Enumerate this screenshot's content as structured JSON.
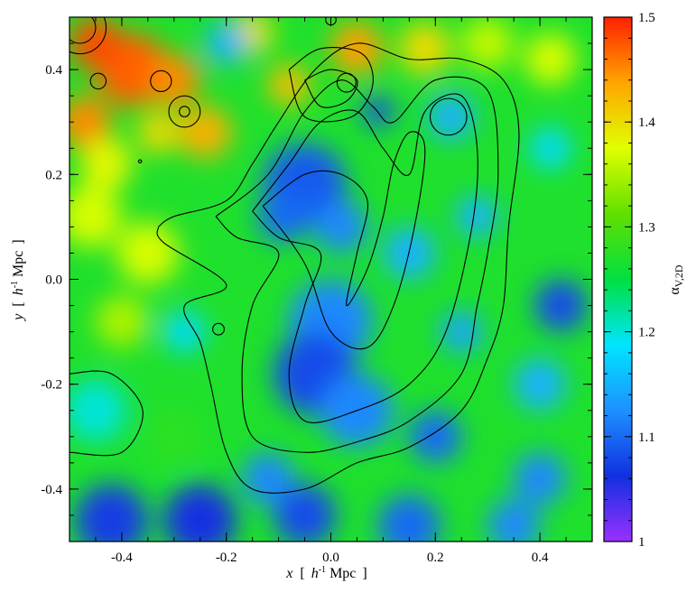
{
  "chart_data": {
    "type": "heatmap",
    "title": "",
    "colorbar_label": "α",
    "colorbar_subscript": "V,2D",
    "xlabel": {
      "var": "x",
      "open": "[",
      "unit_italic": "h",
      "unit_exp": "-1",
      "unit_rest": "Mpc",
      "close": "]"
    },
    "ylabel": {
      "var": "y",
      "open": "[",
      "unit_italic": "h",
      "unit_exp": "-1",
      "unit_rest": "Mpc",
      "close": "]"
    },
    "xlim": [
      -0.5,
      0.5
    ],
    "ylim": [
      -0.5,
      0.5
    ],
    "xticks": [
      -0.4,
      -0.2,
      0.0,
      0.2,
      0.4
    ],
    "xtick_labels": [
      "-0.4",
      "-0.2",
      "0.0",
      "0.2",
      "0.4"
    ],
    "yticks": [
      -0.4,
      -0.2,
      0.0,
      0.2,
      0.4
    ],
    "ytick_labels": [
      "-0.4",
      "-0.2",
      "0.0",
      "0.2",
      "0.4"
    ],
    "colorbar_range": [
      1.0,
      1.5
    ],
    "colorbar_ticks": [
      1.0,
      1.1,
      1.2,
      1.3,
      1.4,
      1.5
    ],
    "colorbar_tick_labels": [
      "1",
      "1.1",
      "1.2",
      "1.3",
      "1.4",
      "1.5"
    ],
    "colormap": [
      "#9b30ff",
      "#1030e0",
      "#1e90ff",
      "#00e5ff",
      "#00e040",
      "#60e000",
      "#e0ff00",
      "#ffa500",
      "#ff2000"
    ],
    "background_level": 1.27,
    "blobs": [
      {
        "x": -0.38,
        "y": 0.4,
        "r": 0.07,
        "level": 1.47
      },
      {
        "x": -0.3,
        "y": 0.38,
        "r": 0.05,
        "level": 1.45
      },
      {
        "x": -0.24,
        "y": 0.28,
        "r": 0.05,
        "level": 1.43
      },
      {
        "x": -0.33,
        "y": 0.28,
        "r": 0.04,
        "level": 1.4
      },
      {
        "x": -0.47,
        "y": 0.3,
        "r": 0.05,
        "level": 1.45
      },
      {
        "x": -0.45,
        "y": 0.45,
        "r": 0.05,
        "level": 1.48
      },
      {
        "x": -0.43,
        "y": 0.22,
        "r": 0.05,
        "level": 1.38
      },
      {
        "x": -0.15,
        "y": 0.47,
        "r": 0.04,
        "level": 1.4
      },
      {
        "x": -0.08,
        "y": 0.37,
        "r": 0.04,
        "level": 1.42
      },
      {
        "x": 0.05,
        "y": 0.44,
        "r": 0.05,
        "level": 1.44
      },
      {
        "x": 0.18,
        "y": 0.44,
        "r": 0.05,
        "level": 1.4
      },
      {
        "x": 0.3,
        "y": 0.45,
        "r": 0.05,
        "level": 1.36
      },
      {
        "x": 0.42,
        "y": 0.42,
        "r": 0.05,
        "level": 1.37
      },
      {
        "x": -0.35,
        "y": 0.05,
        "r": 0.06,
        "level": 1.37
      },
      {
        "x": -0.4,
        "y": -0.08,
        "r": 0.05,
        "level": 1.35
      },
      {
        "x": -0.46,
        "y": 0.12,
        "r": 0.06,
        "level": 1.37
      },
      {
        "x": -0.05,
        "y": 0.18,
        "r": 0.08,
        "level": 1.09
      },
      {
        "x": -0.09,
        "y": 0.12,
        "r": 0.05,
        "level": 1.1
      },
      {
        "x": 0.02,
        "y": 0.1,
        "r": 0.05,
        "level": 1.12
      },
      {
        "x": 0.09,
        "y": 0.32,
        "r": 0.03,
        "level": 1.08
      },
      {
        "x": 0.23,
        "y": 0.31,
        "r": 0.045,
        "level": 1.15
      },
      {
        "x": 0.0,
        "y": -0.08,
        "r": 0.08,
        "level": 1.12
      },
      {
        "x": -0.03,
        "y": -0.18,
        "r": 0.08,
        "level": 1.08
      },
      {
        "x": 0.05,
        "y": -0.25,
        "r": 0.07,
        "level": 1.12
      },
      {
        "x": 0.2,
        "y": -0.3,
        "r": 0.05,
        "level": 1.1
      },
      {
        "x": 0.25,
        "y": -0.1,
        "r": 0.04,
        "level": 1.14
      },
      {
        "x": 0.15,
        "y": 0.05,
        "r": 0.05,
        "level": 1.15
      },
      {
        "x": 0.28,
        "y": 0.12,
        "r": 0.04,
        "level": 1.15
      },
      {
        "x": 0.4,
        "y": -0.2,
        "r": 0.05,
        "level": 1.15
      },
      {
        "x": 0.44,
        "y": -0.05,
        "r": 0.05,
        "level": 1.08
      },
      {
        "x": 0.4,
        "y": -0.38,
        "r": 0.05,
        "level": 1.12
      },
      {
        "x": -0.42,
        "y": -0.46,
        "r": 0.07,
        "level": 1.07
      },
      {
        "x": -0.25,
        "y": -0.46,
        "r": 0.07,
        "level": 1.06
      },
      {
        "x": -0.05,
        "y": -0.45,
        "r": 0.06,
        "level": 1.08
      },
      {
        "x": 0.15,
        "y": -0.47,
        "r": 0.06,
        "level": 1.1
      },
      {
        "x": 0.35,
        "y": -0.47,
        "r": 0.05,
        "level": 1.12
      },
      {
        "x": -0.12,
        "y": -0.38,
        "r": 0.05,
        "level": 1.12
      },
      {
        "x": -0.28,
        "y": -0.1,
        "r": 0.04,
        "level": 1.18
      },
      {
        "x": -0.45,
        "y": -0.25,
        "r": 0.06,
        "level": 1.2
      },
      {
        "x": -0.3,
        "y": -0.3,
        "r": 0.05,
        "level": 1.28
      },
      {
        "x": -0.2,
        "y": 0.45,
        "r": 0.04,
        "level": 1.15
      },
      {
        "x": 0.42,
        "y": 0.25,
        "r": 0.04,
        "level": 1.18
      }
    ],
    "contours": [
      [
        [
          -0.33,
          0.1
        ],
        [
          -0.3,
          0.12
        ],
        [
          -0.2,
          0.15
        ],
        [
          -0.15,
          0.22
        ],
        [
          -0.1,
          0.3
        ],
        [
          -0.03,
          0.4
        ],
        [
          0.05,
          0.45
        ],
        [
          0.15,
          0.42
        ],
        [
          0.25,
          0.42
        ],
        [
          0.33,
          0.38
        ],
        [
          0.36,
          0.28
        ],
        [
          0.34,
          0.1
        ],
        [
          0.33,
          -0.05
        ],
        [
          0.3,
          -0.15
        ],
        [
          0.25,
          -0.25
        ],
        [
          0.15,
          -0.32
        ],
        [
          0.05,
          -0.35
        ],
        [
          -0.05,
          -0.4
        ],
        [
          -0.15,
          -0.4
        ],
        [
          -0.2,
          -0.33
        ],
        [
          -0.23,
          -0.2
        ],
        [
          -0.25,
          -0.12
        ],
        [
          -0.28,
          -0.05
        ],
        [
          -0.2,
          -0.01
        ],
        [
          -0.32,
          0.07
        ],
        [
          -0.33,
          0.1
        ]
      ],
      [
        [
          -0.22,
          0.12
        ],
        [
          -0.12,
          0.2
        ],
        [
          -0.05,
          0.32
        ],
        [
          0.02,
          0.38
        ],
        [
          0.08,
          0.33
        ],
        [
          0.12,
          0.3
        ],
        [
          0.2,
          0.38
        ],
        [
          0.3,
          0.36
        ],
        [
          0.32,
          0.2
        ],
        [
          0.3,
          0.05
        ],
        [
          0.28,
          -0.05
        ],
        [
          0.25,
          -0.18
        ],
        [
          0.15,
          -0.27
        ],
        [
          0.05,
          -0.31
        ],
        [
          -0.05,
          -0.33
        ],
        [
          -0.15,
          -0.3
        ],
        [
          -0.17,
          -0.18
        ],
        [
          -0.15,
          -0.05
        ],
        [
          -0.1,
          0.05
        ],
        [
          -0.18,
          0.08
        ],
        [
          -0.22,
          0.12
        ]
      ],
      [
        [
          -0.15,
          0.13
        ],
        [
          -0.08,
          0.22
        ],
        [
          -0.02,
          0.3
        ],
        [
          0.05,
          0.32
        ],
        [
          0.1,
          0.25
        ],
        [
          0.15,
          0.2
        ],
        [
          0.18,
          0.32
        ],
        [
          0.25,
          0.35
        ],
        [
          0.28,
          0.25
        ],
        [
          0.27,
          0.1
        ],
        [
          0.22,
          -0.1
        ],
        [
          0.15,
          -0.2
        ],
        [
          0.05,
          -0.25
        ],
        [
          -0.05,
          -0.27
        ],
        [
          -0.08,
          -0.18
        ],
        [
          -0.05,
          -0.05
        ],
        [
          -0.02,
          0.05
        ],
        [
          -0.1,
          0.08
        ],
        [
          -0.15,
          0.13
        ]
      ],
      [
        [
          -0.13,
          0.14
        ],
        [
          -0.05,
          0.2
        ],
        [
          0.02,
          0.2
        ],
        [
          0.07,
          0.15
        ],
        [
          0.05,
          0.05
        ],
        [
          0.03,
          -0.05
        ],
        [
          0.07,
          0.02
        ],
        [
          0.1,
          0.12
        ],
        [
          0.12,
          0.22
        ],
        [
          0.15,
          0.28
        ],
        [
          0.18,
          0.25
        ],
        [
          0.16,
          0.1
        ],
        [
          0.12,
          -0.05
        ],
        [
          0.07,
          -0.13
        ],
        [
          0.0,
          -0.1
        ],
        [
          -0.05,
          0.03
        ],
        [
          -0.13,
          0.14
        ]
      ],
      [
        [
          -0.5,
          -0.18
        ],
        [
          -0.42,
          -0.18
        ],
        [
          -0.36,
          -0.25
        ],
        [
          -0.4,
          -0.33
        ],
        [
          -0.5,
          -0.33
        ]
      ],
      [
        [
          -0.05,
          0.38
        ],
        [
          0.0,
          0.4
        ],
        [
          0.05,
          0.38
        ],
        [
          0.03,
          0.34
        ],
        [
          -0.02,
          0.33
        ],
        [
          -0.05,
          0.38
        ]
      ],
      [
        [
          -0.08,
          0.4
        ],
        [
          -0.02,
          0.44
        ],
        [
          0.06,
          0.43
        ],
        [
          0.08,
          0.37
        ],
        [
          0.04,
          0.31
        ],
        [
          -0.05,
          0.31
        ],
        [
          -0.08,
          0.4
        ]
      ]
    ],
    "circles": [
      {
        "x": 0.03,
        "y": 0.375,
        "r": 0.018
      },
      {
        "x": -0.445,
        "y": 0.378,
        "r": 0.015
      },
      {
        "x": -0.325,
        "y": 0.378,
        "r": 0.02
      },
      {
        "x": -0.28,
        "y": 0.32,
        "r": 0.03
      },
      {
        "x": -0.28,
        "y": 0.32,
        "r": 0.01
      },
      {
        "x": -0.215,
        "y": -0.095,
        "r": 0.011
      },
      {
        "x": 0.225,
        "y": 0.31,
        "r": 0.035
      },
      {
        "x": 0.0,
        "y": 0.495,
        "r": 0.01
      },
      {
        "x": -0.365,
        "y": 0.225,
        "r": 0.003
      },
      {
        "x": -0.48,
        "y": 0.48,
        "r": 0.03
      },
      {
        "x": -0.48,
        "y": 0.48,
        "r": 0.05
      }
    ]
  }
}
